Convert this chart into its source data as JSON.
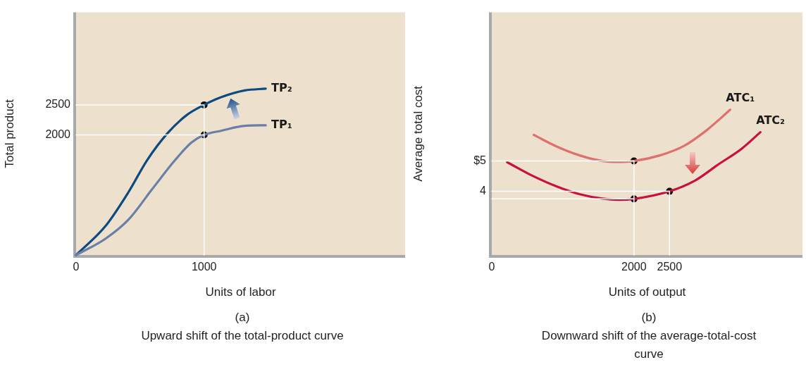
{
  "chart_data": [
    {
      "type": "line",
      "xlabel": "Units of labor",
      "ylabel": "Total product",
      "xlim": [
        0,
        2570
      ],
      "ylim": [
        0,
        4040
      ],
      "xticks": [
        {
          "value": 0,
          "label": "0"
        },
        1000
      ],
      "yticks": [
        2000,
        2500
      ],
      "legend": false,
      "grid": false,
      "marker": "none",
      "line_style": "solid",
      "annotations": [
        "(a)",
        "Upward shift of the total-product curve"
      ],
      "series": [
        {
          "color": "#ffffff",
          "x": [
            0,
            1000,
            1000
          ],
          "values": [
            2500,
            2500,
            0
          ]
        },
        {
          "color": "#ffffff",
          "x": [
            0,
            1000
          ],
          "values": [
            2000,
            2000
          ]
        },
        {
          "name": "TP₁",
          "color": "#6a7fa8",
          "x": [
            0,
            229,
            410,
            592,
            773,
            900,
            1000,
            1136,
            1317,
            1481
          ],
          "values": [
            0,
            270,
            590,
            1090,
            1580,
            1870,
            2000,
            2070,
            2150,
            2160
          ]
        },
        {
          "name": "TP₂",
          "color": "#0d4a80",
          "x": [
            0,
            229,
            410,
            555,
            719,
            864,
            1000,
            1136,
            1317,
            1481
          ],
          "values": [
            0,
            480,
            1050,
            1580,
            2040,
            2330,
            2500,
            2630,
            2740,
            2770
          ]
        },
        {
          "type": "scatter",
          "marker": "circle",
          "color": "#111111",
          "x": [
            1000,
            1000
          ],
          "values": [
            2500,
            2000
          ]
        }
      ]
    },
    {
      "type": "line",
      "xlabel": "Units of output",
      "ylabel": "Average total cost",
      "xlim": [
        0,
        4370
      ],
      "ylim": [
        1.9,
        9.9
      ],
      "xticks": [
        {
          "value": 0,
          "label": "0"
        },
        2000,
        2500
      ],
      "yticks": [
        4,
        {
          "value": 5,
          "label": "$5"
        }
      ],
      "legend": false,
      "grid": false,
      "marker": "none",
      "line_style": "solid",
      "annotations": [
        "(b)",
        "Downward shift of the average-total-cost curve"
      ],
      "series": [
        {
          "color": "#ffffff",
          "x": [
            0,
            2000,
            2000
          ],
          "values": [
            5,
            5,
            1.9
          ]
        },
        {
          "color": "#ffffff",
          "x": [
            0,
            2000
          ],
          "values": [
            3.75,
            3.75
          ]
        },
        {
          "color": "#ffffff",
          "x": [
            0,
            2500,
            2500
          ],
          "values": [
            4,
            4,
            1.9
          ]
        },
        {
          "name": "ATC₁",
          "color": "#e07070",
          "x": [
            591,
            902,
            1229,
            1556,
            1784,
            2000,
            2373,
            2699,
            3026,
            3353
          ],
          "values": [
            5.86,
            5.49,
            5.19,
            5.0,
            4.97,
            5.0,
            5.19,
            5.49,
            6.02,
            6.69
          ]
        },
        {
          "name": "ATC₂",
          "color": "#c8103c",
          "x": [
            216,
            575,
            902,
            1229,
            1556,
            1784,
            2000,
            2500,
            2863,
            3189,
            3517,
            3778
          ],
          "values": [
            4.96,
            4.51,
            4.17,
            3.91,
            3.76,
            3.72,
            3.75,
            4.0,
            4.36,
            4.89,
            5.41,
            5.95
          ]
        },
        {
          "type": "scatter",
          "marker": "circle",
          "color": "#111111",
          "x": [
            2000,
            2000,
            2500
          ],
          "values": [
            5,
            3.75,
            4
          ]
        }
      ]
    }
  ]
}
